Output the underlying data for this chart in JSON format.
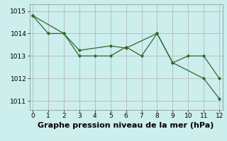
{
  "title": "",
  "xlabel": "Graphe pression niveau de la mer (hPa)",
  "ylabel": "",
  "bg_color": "#cceeed",
  "grid_color": "#b0b0b0",
  "line_color": "#2d6a2d",
  "marker_color": "#2d6a2d",
  "xlim": [
    -0.2,
    12.2
  ],
  "ylim": [
    1010.6,
    1015.3
  ],
  "yticks": [
    1011,
    1012,
    1013,
    1014,
    1015
  ],
  "xticks": [
    0,
    1,
    2,
    3,
    4,
    5,
    6,
    7,
    8,
    9,
    10,
    11,
    12
  ],
  "line1_x": [
    0,
    1,
    2,
    3,
    4,
    5,
    6,
    7,
    8,
    9,
    10,
    11,
    12
  ],
  "line1_y": [
    1014.8,
    1014.0,
    1014.0,
    1013.0,
    1013.0,
    1013.0,
    1013.4,
    1013.0,
    1014.0,
    1012.7,
    1013.0,
    1013.0,
    1012.0
  ],
  "line2_x": [
    0,
    2,
    3,
    5,
    6,
    8,
    9,
    11,
    12
  ],
  "line2_y": [
    1014.8,
    1014.0,
    1013.25,
    1013.45,
    1013.35,
    1014.0,
    1012.7,
    1012.0,
    1011.1
  ],
  "font_size_xlabel": 8,
  "tick_fontsize": 6.5
}
